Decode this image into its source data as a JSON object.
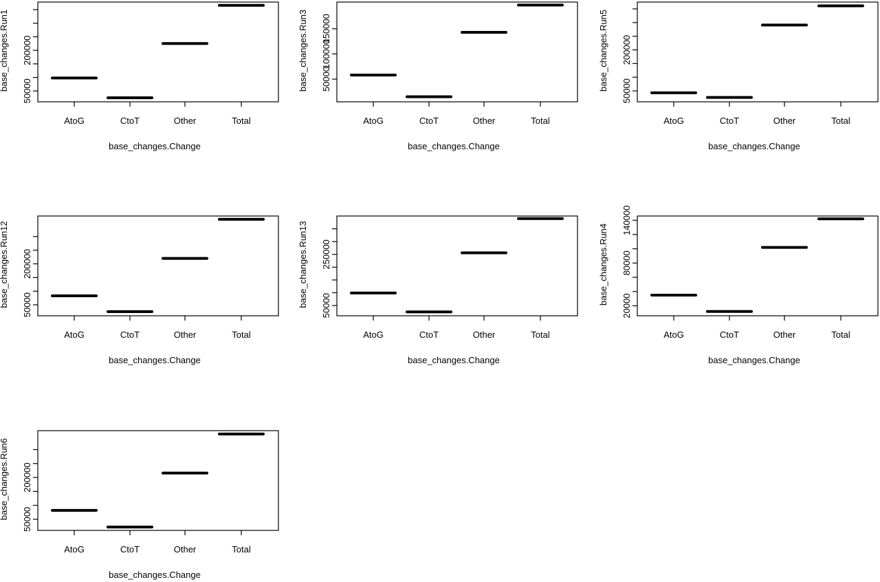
{
  "colors": {
    "background": "#ffffff",
    "ink": "#000000"
  },
  "chart_data": [
    {
      "type": "bar",
      "ylabel": "base_changes.Run1",
      "xlabel": "base_changes.Change",
      "categories": [
        "AtoG",
        "CtoT",
        "Other",
        "Total"
      ],
      "values": [
        98000,
        25000,
        225000,
        366000
      ],
      "ylim": [
        10000,
        378000
      ],
      "yticks": [
        50000,
        100000,
        150000,
        200000,
        250000,
        300000,
        350000
      ],
      "ytick_labels": [
        "50000",
        "",
        "",
        "200000",
        "",
        "",
        ""
      ]
    },
    {
      "type": "bar",
      "ylabel": "base_changes.Run3",
      "xlabel": "base_changes.Change",
      "categories": [
        "AtoG",
        "CtoT",
        "Other",
        "Total"
      ],
      "values": [
        58000,
        15000,
        143000,
        197000
      ],
      "ylim": [
        5000,
        203000
      ],
      "yticks": [
        50000,
        100000,
        150000
      ],
      "ytick_labels": [
        "50000",
        "100000",
        "150000"
      ]
    },
    {
      "type": "bar",
      "ylabel": "base_changes.Run5",
      "xlabel": "base_changes.Change",
      "categories": [
        "AtoG",
        "CtoT",
        "Other",
        "Total"
      ],
      "values": [
        43000,
        26000,
        291000,
        361000
      ],
      "ylim": [
        10000,
        375000
      ],
      "yticks": [
        50000,
        100000,
        150000,
        200000,
        250000,
        300000,
        350000
      ],
      "ytick_labels": [
        "50000",
        "",
        "",
        "200000",
        "",
        "",
        ""
      ]
    },
    {
      "type": "bar",
      "ylabel": "base_changes.Run12",
      "xlabel": "base_changes.Change",
      "categories": [
        "AtoG",
        "CtoT",
        "Other",
        "Total"
      ],
      "values": [
        83000,
        25000,
        220000,
        363000
      ],
      "ylim": [
        10000,
        375000
      ],
      "yticks": [
        50000,
        100000,
        150000,
        200000,
        250000,
        300000
      ],
      "ytick_labels": [
        "50000",
        "",
        "",
        "200000",
        "",
        ""
      ]
    },
    {
      "type": "bar",
      "ylabel": "base_changes.Run13",
      "xlabel": "base_changes.Change",
      "categories": [
        "AtoG",
        "CtoT",
        "Other",
        "Total"
      ],
      "values": [
        99000,
        25000,
        256000,
        390000
      ],
      "ylim": [
        10000,
        400000
      ],
      "yticks": [
        50000,
        100000,
        150000,
        200000,
        250000,
        300000,
        350000
      ],
      "ytick_labels": [
        "50000",
        "",
        "",
        "",
        "250000",
        "",
        ""
      ]
    },
    {
      "type": "bar",
      "ylabel": "base_changes.Run4",
      "xlabel": "base_changes.Change",
      "categories": [
        "AtoG",
        "CtoT",
        "Other",
        "Total"
      ],
      "values": [
        35000,
        12000,
        102000,
        142000
      ],
      "ylim": [
        6000,
        146000
      ],
      "yticks": [
        20000,
        40000,
        60000,
        80000,
        100000,
        120000,
        140000
      ],
      "ytick_labels": [
        "20000",
        "",
        "",
        "80000",
        "",
        "",
        "140000"
      ]
    },
    {
      "type": "bar",
      "ylabel": "base_changes.Run6",
      "xlabel": "base_changes.Change",
      "categories": [
        "AtoG",
        "CtoT",
        "Other",
        "Total"
      ],
      "values": [
        82000,
        22000,
        216000,
        356000
      ],
      "ylim": [
        10000,
        368000
      ],
      "yticks": [
        50000,
        100000,
        150000,
        200000,
        250000,
        300000
      ],
      "ytick_labels": [
        "50000",
        "",
        "",
        "200000",
        "",
        ""
      ]
    }
  ]
}
